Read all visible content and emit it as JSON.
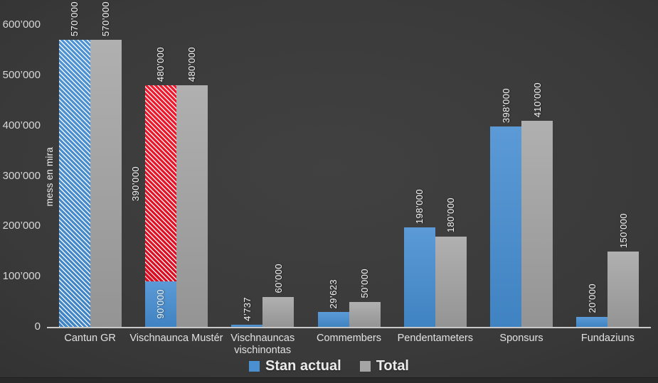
{
  "colors": {
    "series_actual_blue": "#4a90d0",
    "series_total_gray": "#a5a5a5",
    "budget_red": "#e8142b",
    "axis_line": "#c9c9c9",
    "tick_text": "#d8d8d8",
    "value_label_text": "#f3f3f3",
    "background_center": "#414141",
    "background_edge": "#262626"
  },
  "chart_data": {
    "type": "bar",
    "title": "",
    "xlabel": "",
    "ylabel": "mess en mira",
    "ylim": [
      0,
      600000
    ],
    "ytick_interval": 100000,
    "grid": false,
    "legend_position": "bottom",
    "yticks": [
      {
        "value": 600000,
        "label": "600’000"
      },
      {
        "value": 500000,
        "label": "500’000"
      },
      {
        "value": 400000,
        "label": "400’000"
      },
      {
        "value": 300000,
        "label": "300’000"
      },
      {
        "value": 200000,
        "label": "200’000"
      },
      {
        "value": 100000,
        "label": "100’000"
      },
      {
        "value": 0,
        "label": "0"
      }
    ],
    "legend": [
      {
        "name": "Stan actual",
        "color": "#4a90d0"
      },
      {
        "name": "Total",
        "color": "#a5a5a5"
      }
    ],
    "categories": [
      "Cantun GR",
      "Vischnaunca Mustér",
      "Vischnauncas vischinontas",
      "Commembers",
      "Pendentameters",
      "Sponsurs",
      "Fundaziuns"
    ],
    "series": [
      {
        "name": "Stan actual",
        "values": [
          570000,
          480000,
          4737,
          29623,
          198000,
          398000,
          20000
        ]
      },
      {
        "name": "Total",
        "values": [
          570000,
          480000,
          60000,
          50000,
          180000,
          410000,
          150000
        ]
      }
    ],
    "bars": [
      {
        "category": "Cantun GR",
        "actual": {
          "segments": [
            {
              "value": 570000,
              "label": "570’000",
              "fill": "hatch-blue",
              "label_placement": "above"
            }
          ]
        },
        "total": {
          "value": 570000,
          "label": "570’000"
        }
      },
      {
        "category": "Vischnaunca Mustér",
        "actual": {
          "segments": [
            {
              "value": 90000,
              "label": "90’000",
              "fill": "solid-blue",
              "label_placement": "inside"
            },
            {
              "value": 390000,
              "label": "390’000",
              "fill": "hatch-red",
              "label_placement": "left"
            }
          ],
          "stack_total_label": "480’000"
        },
        "total": {
          "value": 480000,
          "label": "480’000"
        }
      },
      {
        "category": "Vischnauncas\nvischinontas",
        "actual": {
          "segments": [
            {
              "value": 4737,
              "label": "4’737",
              "fill": "solid-blue",
              "label_placement": "above"
            }
          ]
        },
        "total": {
          "value": 60000,
          "label": "60’000"
        }
      },
      {
        "category": "Commembers",
        "actual": {
          "segments": [
            {
              "value": 29623,
              "label": "29’623",
              "fill": "solid-blue",
              "label_placement": "above"
            }
          ]
        },
        "total": {
          "value": 50000,
          "label": "50’000"
        }
      },
      {
        "category": "Pendentameters",
        "actual": {
          "segments": [
            {
              "value": 198000,
              "label": "198’000",
              "fill": "solid-blue",
              "label_placement": "above"
            }
          ]
        },
        "total": {
          "value": 180000,
          "label": "180’000"
        }
      },
      {
        "category": "Sponsurs",
        "actual": {
          "segments": [
            {
              "value": 398000,
              "label": "398’000",
              "fill": "solid-blue",
              "label_placement": "above"
            }
          ]
        },
        "total": {
          "value": 410000,
          "label": "410’000"
        }
      },
      {
        "category": "Fundaziuns",
        "actual": {
          "segments": [
            {
              "value": 20000,
              "label": "20’000",
              "fill": "solid-blue",
              "label_placement": "above"
            }
          ]
        },
        "total": {
          "value": 150000,
          "label": "150’000"
        }
      }
    ]
  }
}
